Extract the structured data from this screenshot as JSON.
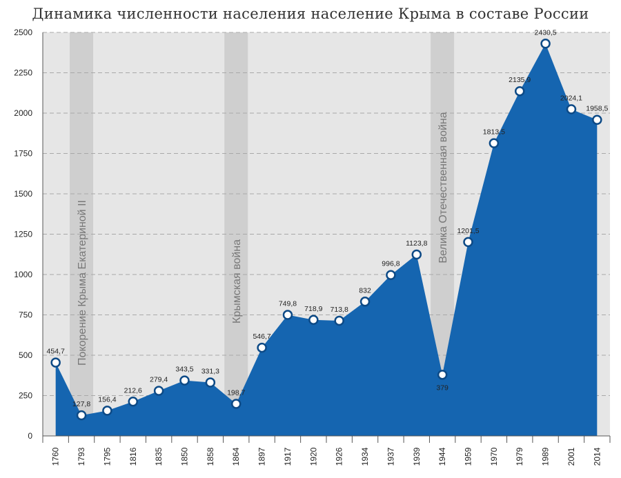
{
  "chart_data": {
    "type": "area",
    "title": "Динамика численности населения население Крыма в составе России",
    "xlabel": "",
    "ylabel": "",
    "ylim": [
      0,
      2500
    ],
    "yticks": [
      0,
      250,
      500,
      750,
      1000,
      1250,
      1500,
      1750,
      2000,
      2250,
      2500
    ],
    "categories": [
      "1760",
      "1793",
      "1795",
      "1816",
      "1835",
      "1850",
      "1858",
      "1864",
      "1897",
      "1917",
      "1920",
      "1926",
      "1934",
      "1937",
      "1939",
      "1944",
      "1959",
      "1970",
      "1979",
      "1989",
      "2001",
      "2014"
    ],
    "values": [
      454.7,
      127.8,
      156.4,
      212.6,
      279.4,
      343.5,
      331.3,
      198.7,
      546.7,
      749.8,
      718.9,
      713.8,
      832,
      996.8,
      1123.8,
      379,
      1201.5,
      1813.5,
      2135.9,
      2430.5,
      2024.1,
      1958.5
    ],
    "data_labels": [
      "454,7",
      "127,8",
      "156,4",
      "212,6",
      "279,4",
      "343,5",
      "331,3",
      "198,7",
      "546,7",
      "749,8",
      "718,9",
      "713,8",
      "832",
      "996,8",
      "1123,8",
      "379",
      "1201,5",
      "1813,5",
      "2135,9",
      "2430,5",
      "2024,1",
      "1958,5"
    ],
    "grid": true,
    "colors": {
      "area": "#1565b0",
      "plot_bg": "#e6e6e6",
      "band": "#cfcfcf",
      "marker_fill": "#ffffff",
      "grid": "#a8a8a8"
    },
    "bands": [
      {
        "category": "1793",
        "label": "Покорение Крыма Екатериной II"
      },
      {
        "category": "1864",
        "label": "Крымская война"
      },
      {
        "category": "1944",
        "label": "Велика Отечественная война"
      }
    ]
  }
}
